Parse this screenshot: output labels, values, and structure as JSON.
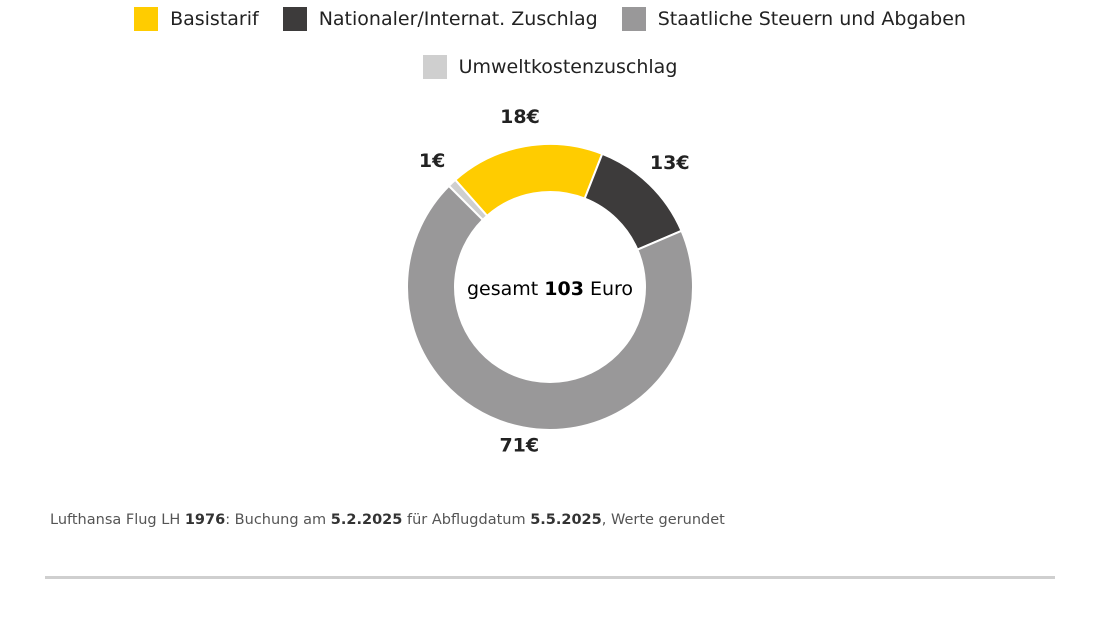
{
  "chart_data": {
    "type": "donut",
    "categories": [
      "Basistarif",
      "Nationaler/Internat. Zuschlag",
      "Staatliche Steuern und Abgaben",
      "Umweltkostenzuschlag"
    ],
    "values": [
      18,
      13,
      71,
      1
    ],
    "value_labels": [
      "18€",
      "13€",
      "71€",
      "1€"
    ],
    "colors": [
      "#ffcc00",
      "#3d3b3b",
      "#999899",
      "#cfcfcf"
    ],
    "center": {
      "prefix": "gesamt",
      "total": 103,
      "suffix": "Euro"
    },
    "note": [
      {
        "text": "Lufthansa Flug LH",
        "bold": false
      },
      {
        "text": "1976",
        "bold": true
      },
      {
        "text": ": Buchung am",
        "bold": false
      },
      {
        "text": "5.2.2025",
        "bold": true
      },
      {
        "text": "für Abflugdatum",
        "bold": false
      },
      {
        "text": "5.5.2025",
        "bold": true
      },
      {
        "text": ", Werte gerundet",
        "bold": false
      }
    ]
  }
}
